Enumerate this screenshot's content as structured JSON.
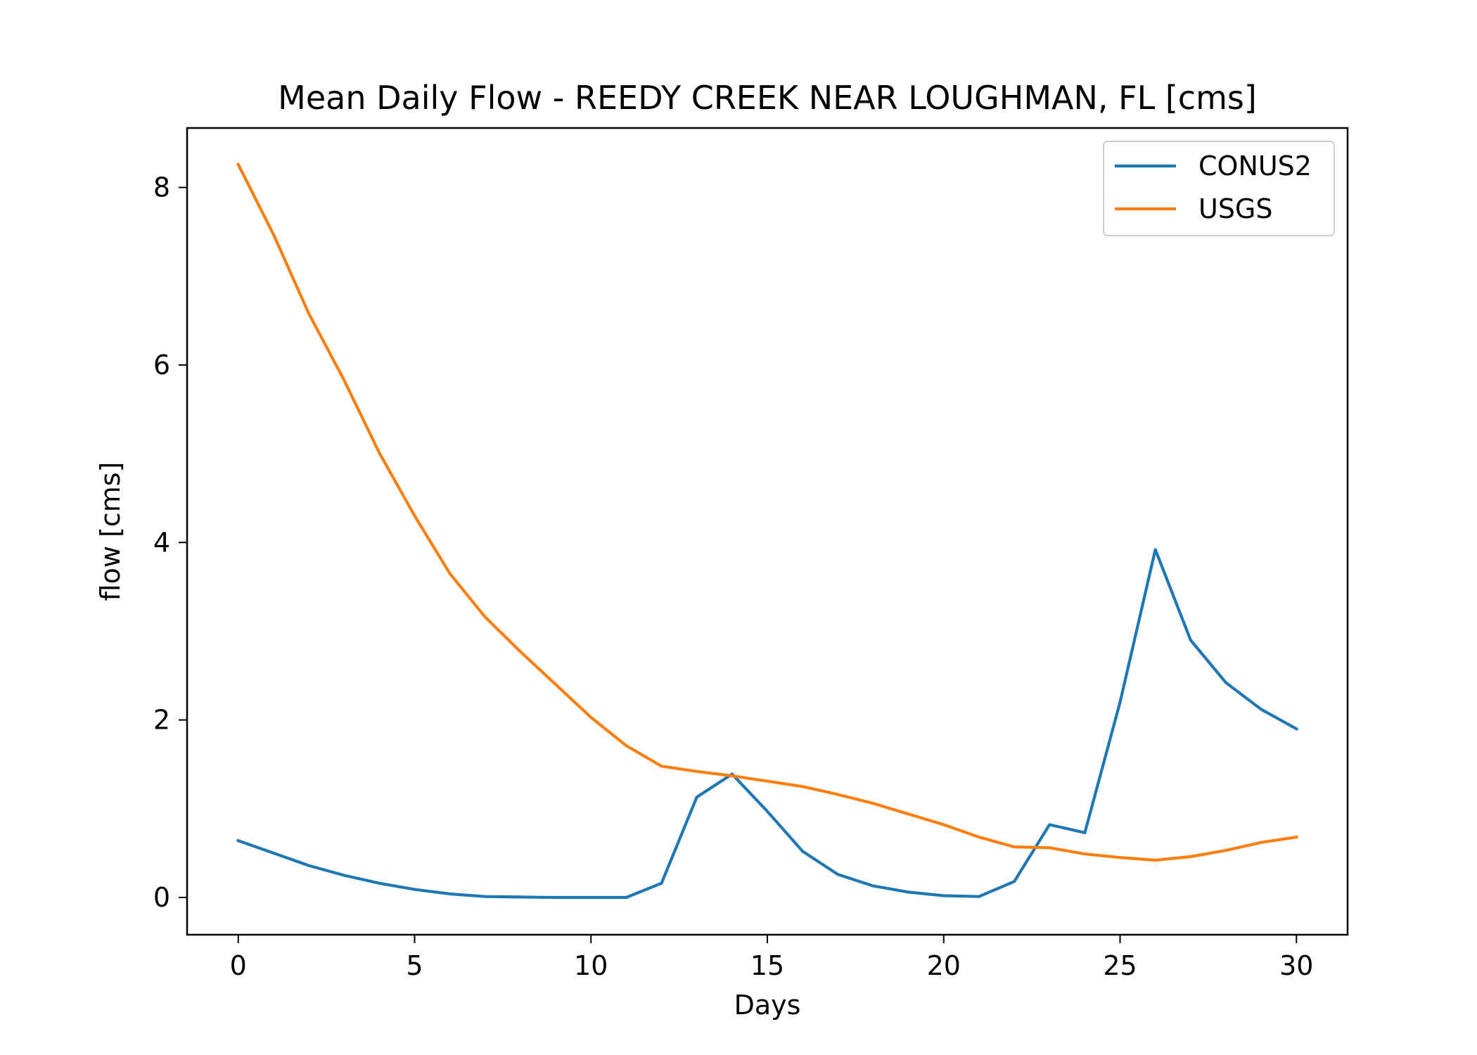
{
  "chart_data": {
    "type": "line",
    "title": "Mean Daily Flow - REEDY CREEK NEAR LOUGHMAN, FL [cms]",
    "xlabel": "Days",
    "ylabel": "flow [cms]",
    "xlim": [
      -1.45,
      31.45
    ],
    "ylim": [
      -0.42,
      8.67
    ],
    "xticks": [
      0,
      5,
      10,
      15,
      20,
      25,
      30
    ],
    "yticks": [
      0,
      2,
      4,
      6,
      8
    ],
    "grid": false,
    "legend_position": "upper right",
    "x": [
      0,
      1,
      2,
      3,
      4,
      5,
      6,
      7,
      8,
      9,
      10,
      11,
      12,
      13,
      14,
      15,
      16,
      17,
      18,
      19,
      20,
      21,
      22,
      23,
      24,
      25,
      26,
      27,
      28,
      29,
      30
    ],
    "series": [
      {
        "name": "CONUS2",
        "color": "#1f77b4",
        "values": [
          0.64,
          0.5,
          0.36,
          0.25,
          0.16,
          0.09,
          0.04,
          0.01,
          0.005,
          0.0,
          0.0,
          0.0,
          0.16,
          1.13,
          1.39,
          0.97,
          0.52,
          0.26,
          0.13,
          0.06,
          0.02,
          0.01,
          0.18,
          0.82,
          0.73,
          2.2,
          3.92,
          2.9,
          2.42,
          2.12,
          1.9
        ]
      },
      {
        "name": "USGS",
        "color": "#ff7f0e",
        "values": [
          8.26,
          7.47,
          6.58,
          5.83,
          5.01,
          4.3,
          3.65,
          3.16,
          2.77,
          2.4,
          2.03,
          1.71,
          1.48,
          1.42,
          1.37,
          1.31,
          1.25,
          1.16,
          1.06,
          0.94,
          0.82,
          0.68,
          0.57,
          0.56,
          0.49,
          0.45,
          0.42,
          0.46,
          0.53,
          0.62,
          0.68
        ]
      }
    ]
  }
}
